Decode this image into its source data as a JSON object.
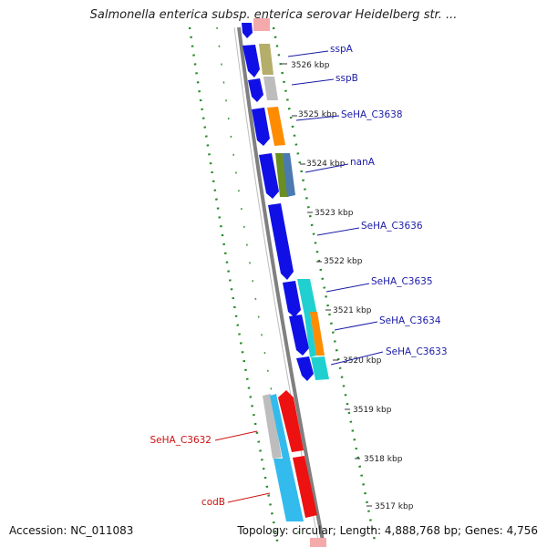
{
  "title": "Salmonella enterica subsp. enterica serovar Heidelberg str. ...",
  "footer": {
    "accession": "Accession: NC_011083",
    "topology": "Topology: circular; Length: 4,888,768 bp; Genes: 4,756"
  },
  "colors": {
    "backbone": "#808080",
    "forward_cds": "#1010e6",
    "reverse_cds": "#ee1111",
    "forward_label": "#1a1aa8",
    "reverse_label": "#cc1111",
    "gc_dots": "#2a8a2a"
  },
  "ticks": [
    {
      "label": "3526 kbp"
    },
    {
      "label": "3525 kbp"
    },
    {
      "label": "3524 kbp"
    },
    {
      "label": "3523 kbp"
    },
    {
      "label": "3522 kbp"
    },
    {
      "label": "3521 kbp"
    },
    {
      "label": "3520 kbp"
    },
    {
      "label": "3519 kbp"
    },
    {
      "label": "3518 kbp"
    },
    {
      "label": "3517 kbp"
    }
  ],
  "gene_labels": [
    {
      "label": "sspA"
    },
    {
      "label": "sspB"
    },
    {
      "label": "SeHA_C3638"
    },
    {
      "label": "nanA"
    },
    {
      "label": "SeHA_C3636"
    },
    {
      "label": "SeHA_C3635"
    },
    {
      "label": "SeHA_C3634"
    },
    {
      "label": "SeHA_C3633"
    },
    {
      "label": "SeHA_C3632"
    },
    {
      "label": "codB"
    }
  ]
}
